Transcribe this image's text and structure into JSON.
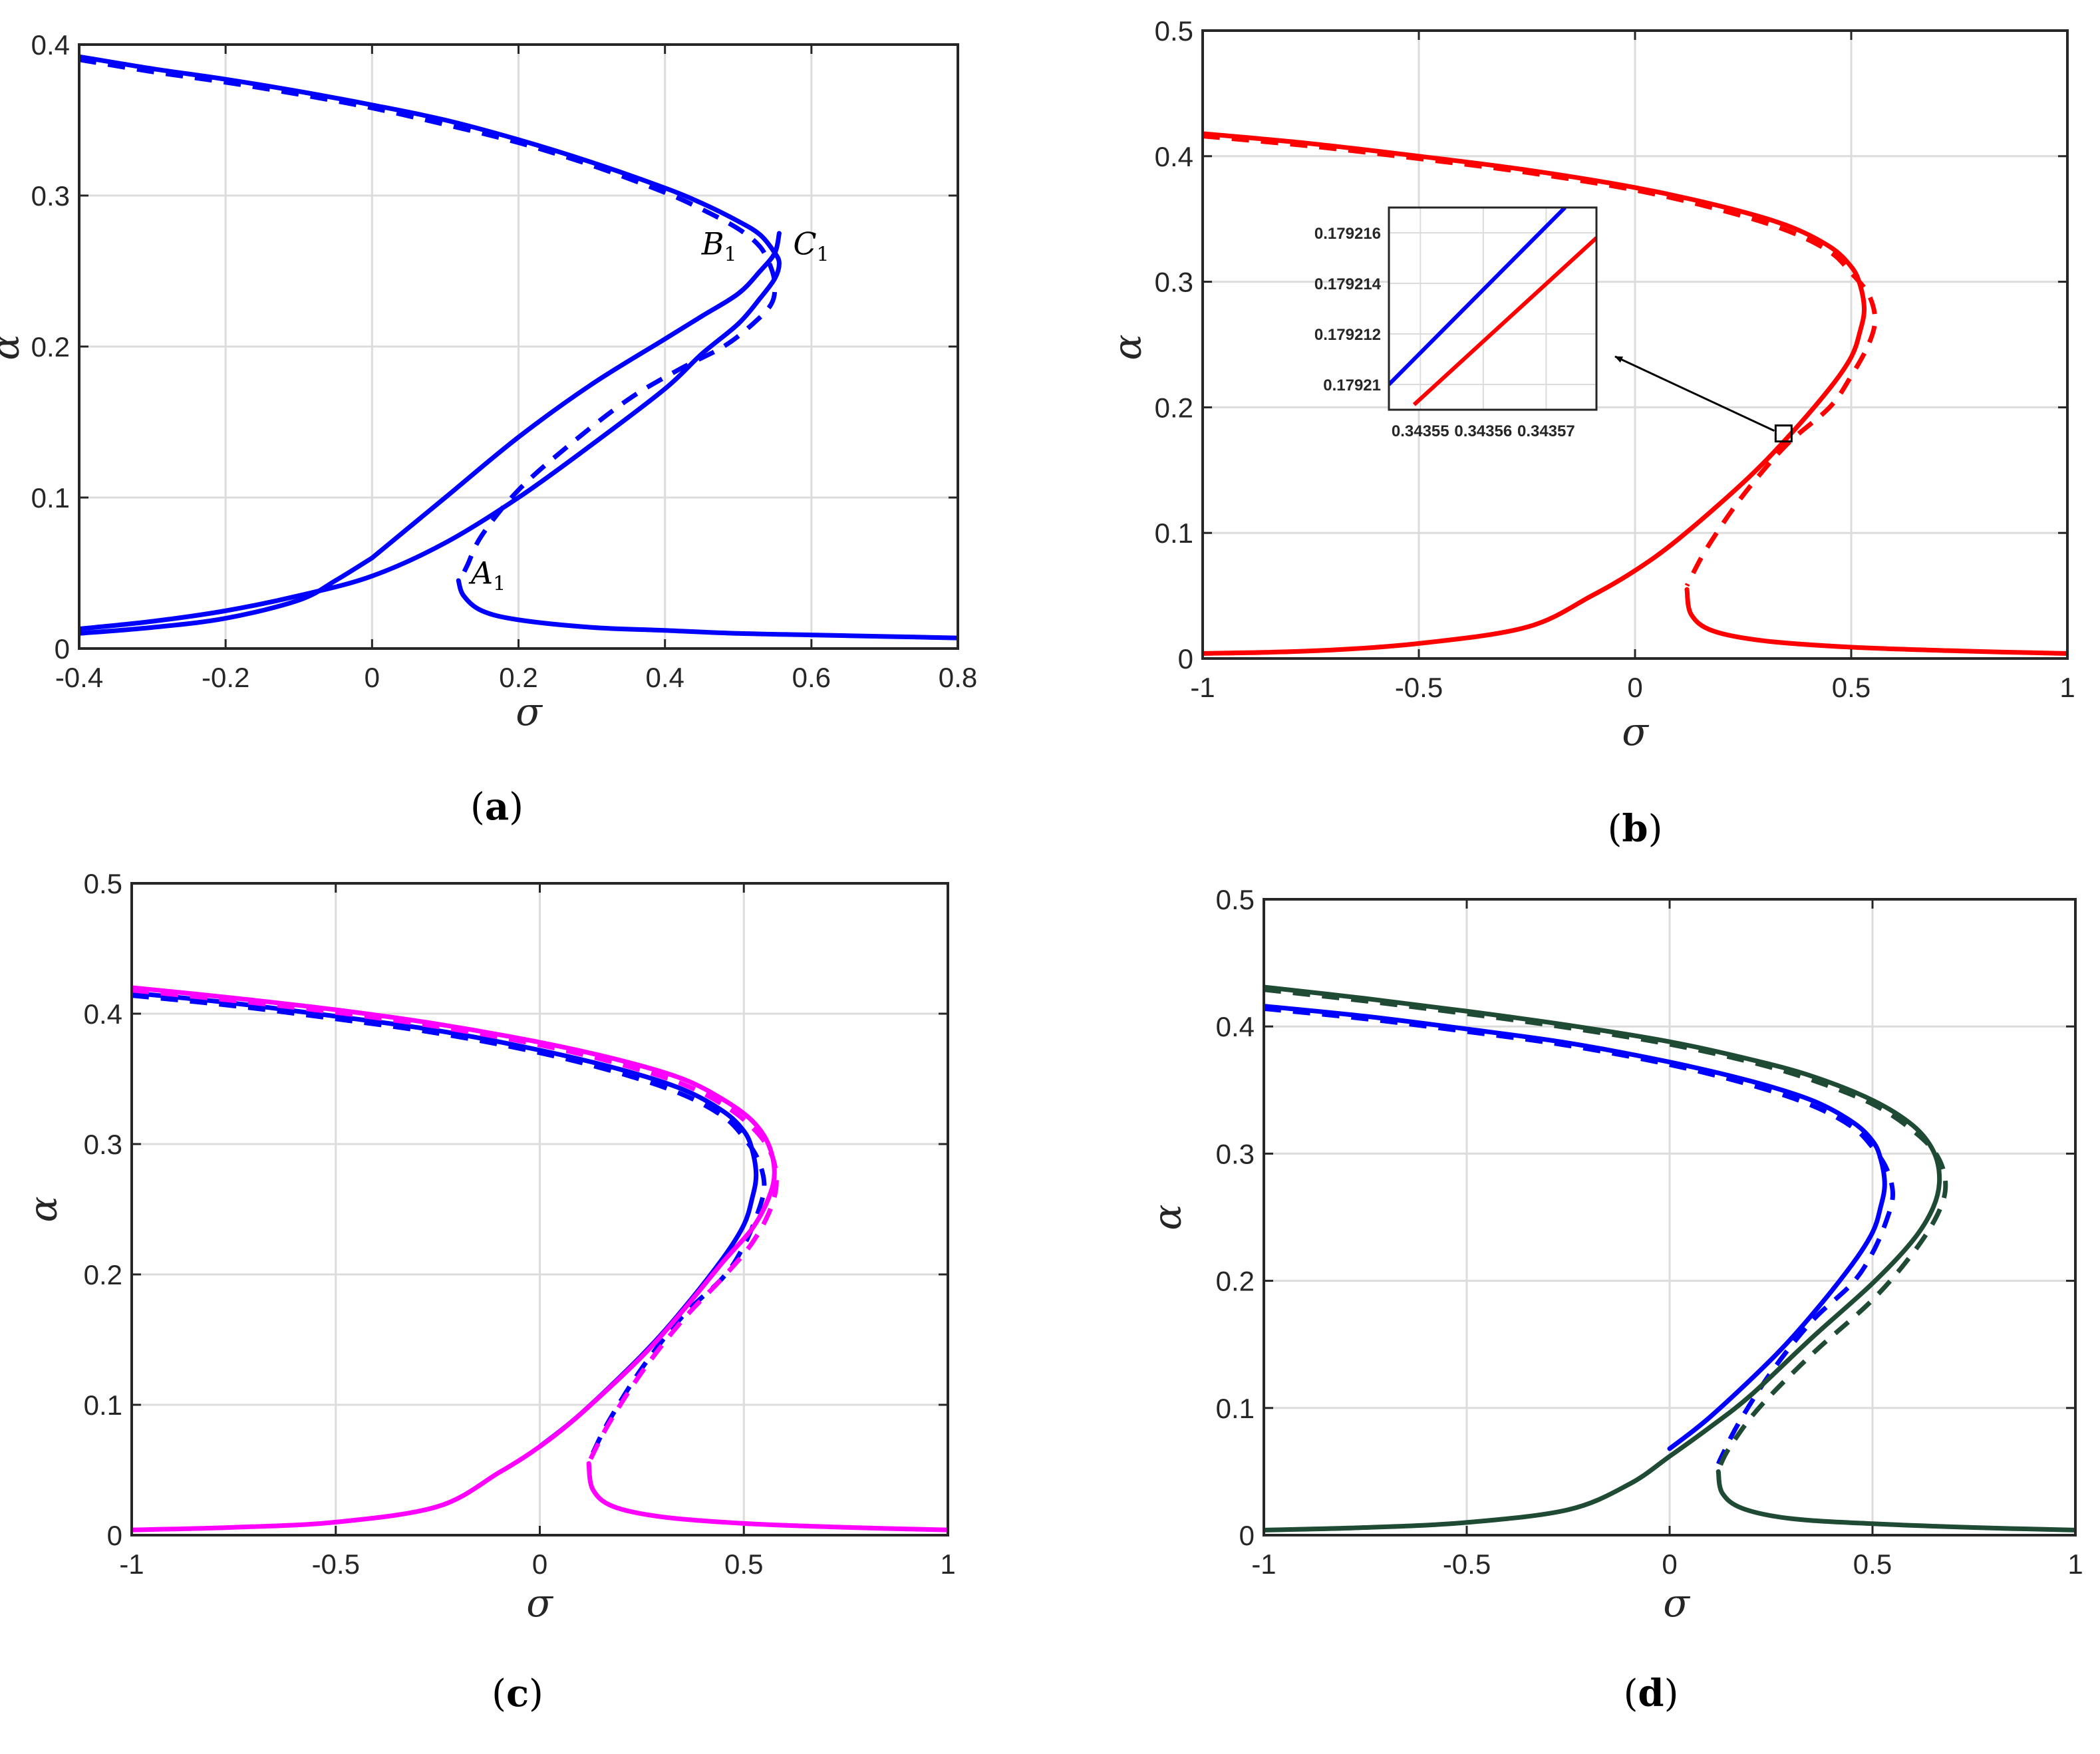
{
  "colors": {
    "blue": "#0000ff",
    "red": "#ff0000",
    "magenta": "#ff00ff",
    "darkgreen": "#1f4a33",
    "grid": "#dcdcdc",
    "axis": "#262626"
  },
  "chart_data": [
    {
      "type": "line",
      "panel_label": "(a)",
      "xlabel": "σ",
      "ylabel": "α",
      "xlim": [
        -0.4,
        0.8
      ],
      "ylim": [
        0,
        0.4
      ],
      "xticks": [
        -0.4,
        -0.2,
        0,
        0.2,
        0.4,
        0.6,
        0.8
      ],
      "xtick_labels": [
        "-0.4",
        "-0.2",
        "0",
        "0.2",
        "0.4",
        "0.6",
        "0.8"
      ],
      "yticks": [
        0,
        0.1,
        0.2,
        0.3,
        0.4
      ],
      "ytick_labels": [
        "0",
        "0.1",
        "0.2",
        "0.3",
        "0.4"
      ],
      "grid": true,
      "annotations": [
        {
          "letter": "A",
          "sub": "1",
          "x": 0.135,
          "y": 0.05
        },
        {
          "letter": "B",
          "sub": "1",
          "x": 0.45,
          "y": 0.268
        },
        {
          "letter": "C",
          "sub": "1",
          "x": 0.575,
          "y": 0.268
        }
      ],
      "series": [
        {
          "color": "blue",
          "dash": false,
          "x": [
            -0.4,
            -0.3,
            -0.2,
            -0.1,
            0,
            0.1,
            0.2,
            0.3,
            0.4,
            0.45,
            0.5,
            0.53,
            0.55,
            0.556,
            0.55,
            0.53,
            0.5,
            0.45,
            0.4,
            0.3,
            0.2,
            0.1,
            0,
            -0.1,
            -0.2,
            -0.3,
            -0.4
          ],
          "y": [
            0.392,
            0.384,
            0.377,
            0.369,
            0.36,
            0.35,
            0.337,
            0.322,
            0.305,
            0.295,
            0.283,
            0.274,
            0.262,
            0.255,
            0.245,
            0.232,
            0.215,
            0.195,
            0.172,
            0.135,
            0.1,
            0.07,
            0.048,
            0.035,
            0.025,
            0.018,
            0.013
          ]
        },
        {
          "color": "blue",
          "dash": true,
          "x": [
            -0.4,
            -0.3,
            -0.2,
            -0.1,
            0,
            0.1,
            0.2,
            0.3,
            0.4,
            0.45,
            0.5,
            0.53,
            0.545,
            0.55,
            0.545,
            0.52,
            0.48,
            0.42,
            0.35,
            0.27,
            0.2,
            0.15,
            0.13,
            0.12
          ],
          "y": [
            0.39,
            0.382,
            0.375,
            0.367,
            0.358,
            0.347,
            0.335,
            0.32,
            0.302,
            0.291,
            0.278,
            0.266,
            0.252,
            0.24,
            0.228,
            0.215,
            0.2,
            0.185,
            0.165,
            0.135,
            0.105,
            0.075,
            0.055,
            0.045
          ]
        },
        {
          "color": "blue",
          "dash": false,
          "x": [
            0.118,
            0.125,
            0.15,
            0.2,
            0.3,
            0.4,
            0.5,
            0.6,
            0.7,
            0.8
          ],
          "y": [
            0.045,
            0.035,
            0.025,
            0.019,
            0.014,
            0.012,
            0.01,
            0.009,
            0.008,
            0.007
          ]
        },
        {
          "color": "blue",
          "dash": false,
          "x": [
            -0.4,
            -0.3,
            -0.2,
            -0.1,
            -0.05,
            0
          ],
          "y": [
            0.01,
            0.014,
            0.02,
            0.032,
            0.045,
            0.06
          ]
        },
        {
          "color": "blue",
          "dash": false,
          "x": [
            0,
            0.1,
            0.2,
            0.3,
            0.4,
            0.45,
            0.5,
            0.53,
            0.55,
            0.556
          ],
          "y": [
            0.06,
            0.1,
            0.14,
            0.175,
            0.205,
            0.22,
            0.235,
            0.25,
            0.262,
            0.275
          ]
        }
      ]
    },
    {
      "type": "line",
      "panel_label": "(b)",
      "xlabel": "σ",
      "ylabel": "α",
      "xlim": [
        -1,
        1
      ],
      "ylim": [
        0,
        0.5
      ],
      "xticks": [
        -1,
        -0.5,
        0,
        0.5,
        1
      ],
      "xtick_labels": [
        "-1",
        "-0.5",
        "0",
        "0.5",
        "1"
      ],
      "yticks": [
        0,
        0.1,
        0.2,
        0.3,
        0.4,
        0.5
      ],
      "ytick_labels": [
        "0",
        "0.1",
        "0.2",
        "0.3",
        "0.4",
        "0.5"
      ],
      "grid": true,
      "inset": {
        "xlim": [
          0.343545,
          0.343578
        ],
        "ylim": [
          0.179209,
          0.179217
        ],
        "xticks": [
          0.34355,
          0.34356,
          0.34357
        ],
        "xtick_labels": [
          "0.34355",
          "0.34356",
          "0.34357"
        ],
        "yticks": [
          0.17921,
          0.179212,
          0.179214,
          0.179216
        ],
        "ytick_labels": [
          "0.17921",
          "0.179212",
          "0.179214",
          "0.179216"
        ],
        "series": [
          {
            "color": "blue",
            "x": [
              0.343545,
              0.343573
            ],
            "y": [
              0.17921,
              0.179217
            ]
          },
          {
            "color": "red",
            "x": [
              0.343549,
              0.343578
            ],
            "y": [
              0.1792092,
              0.1792158
            ]
          }
        ],
        "marker_box": {
          "x": 0.343,
          "y": 0.179
        }
      },
      "series": [
        {
          "color": "red",
          "dash": false,
          "x": [
            -1,
            -0.75,
            -0.5,
            -0.25,
            0,
            0.2,
            0.35,
            0.45,
            0.5,
            0.52,
            0.53,
            0.52,
            0.5,
            0.45,
            0.35,
            0.25,
            0.1,
            0,
            -0.1,
            -0.25,
            -0.5,
            -0.75,
            -1
          ],
          "y": [
            0.418,
            0.41,
            0.4,
            0.389,
            0.375,
            0.36,
            0.345,
            0.328,
            0.312,
            0.298,
            0.278,
            0.26,
            0.24,
            0.215,
            0.175,
            0.14,
            0.095,
            0.07,
            0.05,
            0.025,
            0.012,
            0.006,
            0.004
          ]
        },
        {
          "color": "red",
          "dash": true,
          "x": [
            -1,
            -0.75,
            -0.5,
            -0.25,
            0,
            0.2,
            0.35,
            0.45,
            0.5,
            0.54,
            0.555,
            0.54,
            0.5,
            0.45,
            0.35,
            0.25,
            0.17,
            0.13,
            0.12
          ],
          "y": [
            0.416,
            0.408,
            0.398,
            0.387,
            0.373,
            0.357,
            0.341,
            0.324,
            0.307,
            0.29,
            0.27,
            0.25,
            0.225,
            0.2,
            0.17,
            0.13,
            0.09,
            0.065,
            0.058
          ]
        },
        {
          "color": "red",
          "dash": false,
          "x": [
            0.12,
            0.13,
            0.18,
            0.3,
            0.5,
            0.75,
            1
          ],
          "y": [
            0.055,
            0.035,
            0.022,
            0.014,
            0.009,
            0.006,
            0.004
          ]
        }
      ]
    },
    {
      "type": "line",
      "panel_label": "(c)",
      "xlabel": "σ",
      "ylabel": "α",
      "xlim": [
        -1,
        1
      ],
      "ylim": [
        0,
        0.5
      ],
      "xticks": [
        -1,
        -0.5,
        0,
        0.5,
        1
      ],
      "xtick_labels": [
        "-1",
        "-0.5",
        "0",
        "0.5",
        "1"
      ],
      "yticks": [
        0,
        0.1,
        0.2,
        0.3,
        0.4,
        0.5
      ],
      "ytick_labels": [
        "0",
        "0.1",
        "0.2",
        "0.3",
        "0.4",
        "0.5"
      ],
      "grid": true,
      "series": [
        {
          "color": "blue",
          "dash": false,
          "x": [
            -1,
            -0.75,
            -0.5,
            -0.25,
            0,
            0.2,
            0.35,
            0.45,
            0.5,
            0.52,
            0.53,
            0.52,
            0.5,
            0.45,
            0.35,
            0.25,
            0.1,
            0
          ],
          "y": [
            0.416,
            0.408,
            0.398,
            0.387,
            0.372,
            0.357,
            0.342,
            0.325,
            0.31,
            0.296,
            0.276,
            0.258,
            0.238,
            0.213,
            0.173,
            0.138,
            0.093,
            0.068
          ]
        },
        {
          "color": "blue",
          "dash": true,
          "x": [
            -1,
            -0.75,
            -0.5,
            -0.25,
            0,
            0.2,
            0.35,
            0.45,
            0.5,
            0.535,
            0.55,
            0.535,
            0.5,
            0.45,
            0.35,
            0.25,
            0.17,
            0.13,
            0.12
          ],
          "y": [
            0.414,
            0.406,
            0.396,
            0.385,
            0.37,
            0.354,
            0.338,
            0.321,
            0.305,
            0.288,
            0.268,
            0.248,
            0.222,
            0.198,
            0.168,
            0.128,
            0.088,
            0.063,
            0.056
          ]
        },
        {
          "color": "magenta",
          "dash": false,
          "x": [
            -1,
            -0.75,
            -0.5,
            -0.25,
            0,
            0.2,
            0.35,
            0.45,
            0.52,
            0.56,
            0.575,
            0.56,
            0.52,
            0.45,
            0.35,
            0.25,
            0.1,
            0,
            -0.1,
            -0.25,
            -0.5,
            -0.75,
            -1
          ],
          "y": [
            0.42,
            0.412,
            0.403,
            0.392,
            0.378,
            0.364,
            0.35,
            0.334,
            0.318,
            0.3,
            0.278,
            0.258,
            0.235,
            0.21,
            0.172,
            0.137,
            0.093,
            0.068,
            0.048,
            0.022,
            0.01,
            0.006,
            0.004
          ]
        },
        {
          "color": "magenta",
          "dash": true,
          "x": [
            -1,
            -0.75,
            -0.5,
            -0.25,
            0,
            0.2,
            0.35,
            0.45,
            0.52,
            0.565,
            0.58,
            0.565,
            0.52,
            0.45,
            0.35,
            0.25,
            0.17,
            0.13,
            0.12
          ],
          "y": [
            0.418,
            0.41,
            0.401,
            0.39,
            0.376,
            0.361,
            0.346,
            0.33,
            0.313,
            0.294,
            0.272,
            0.25,
            0.224,
            0.198,
            0.165,
            0.125,
            0.086,
            0.062,
            0.055
          ]
        },
        {
          "color": "magenta",
          "dash": false,
          "x": [
            0.12,
            0.13,
            0.18,
            0.3,
            0.5,
            0.75,
            1
          ],
          "y": [
            0.055,
            0.035,
            0.022,
            0.014,
            0.009,
            0.006,
            0.004
          ]
        }
      ]
    },
    {
      "type": "line",
      "panel_label": "(d)",
      "xlabel": "σ",
      "ylabel": "α",
      "xlim": [
        -1,
        1
      ],
      "ylim": [
        0,
        0.5
      ],
      "xticks": [
        -1,
        -0.5,
        0,
        0.5,
        1
      ],
      "xtick_labels": [
        "-1",
        "-0.5",
        "0",
        "0.5",
        "1"
      ],
      "yticks": [
        0,
        0.1,
        0.2,
        0.3,
        0.4,
        0.5
      ],
      "ytick_labels": [
        "0",
        "0.1",
        "0.2",
        "0.3",
        "0.4",
        "0.5"
      ],
      "grid": true,
      "series": [
        {
          "color": "blue",
          "dash": false,
          "x": [
            -1,
            -0.75,
            -0.5,
            -0.25,
            0,
            0.2,
            0.35,
            0.45,
            0.5,
            0.52,
            0.53,
            0.52,
            0.5,
            0.45,
            0.35,
            0.25,
            0.1,
            0
          ],
          "y": [
            0.416,
            0.408,
            0.398,
            0.387,
            0.372,
            0.357,
            0.342,
            0.325,
            0.31,
            0.296,
            0.276,
            0.258,
            0.238,
            0.213,
            0.173,
            0.138,
            0.093,
            0.068
          ]
        },
        {
          "color": "blue",
          "dash": true,
          "x": [
            -1,
            -0.75,
            -0.5,
            -0.25,
            0,
            0.2,
            0.35,
            0.45,
            0.5,
            0.535,
            0.55,
            0.535,
            0.5,
            0.45,
            0.35,
            0.25,
            0.17,
            0.13,
            0.12
          ],
          "y": [
            0.414,
            0.406,
            0.396,
            0.385,
            0.37,
            0.354,
            0.338,
            0.321,
            0.305,
            0.288,
            0.268,
            0.248,
            0.222,
            0.198,
            0.168,
            0.128,
            0.088,
            0.063,
            0.056
          ]
        },
        {
          "color": "darkgreen",
          "dash": false,
          "x": [
            -1,
            -0.75,
            -0.5,
            -0.25,
            0,
            0.2,
            0.35,
            0.5,
            0.6,
            0.65,
            0.665,
            0.65,
            0.6,
            0.5,
            0.35,
            0.2,
            0.1,
            0,
            -0.1,
            -0.25,
            -0.5,
            -0.75,
            -1
          ],
          "y": [
            0.431,
            0.422,
            0.412,
            0.401,
            0.388,
            0.374,
            0.361,
            0.342,
            0.322,
            0.302,
            0.28,
            0.258,
            0.232,
            0.198,
            0.155,
            0.11,
            0.085,
            0.062,
            0.04,
            0.02,
            0.01,
            0.006,
            0.004
          ]
        },
        {
          "color": "darkgreen",
          "dash": true,
          "x": [
            -1,
            -0.75,
            -0.5,
            -0.25,
            0,
            0.2,
            0.35,
            0.5,
            0.6,
            0.66,
            0.68,
            0.66,
            0.6,
            0.5,
            0.35,
            0.22,
            0.15,
            0.125,
            0.12
          ],
          "y": [
            0.429,
            0.42,
            0.41,
            0.399,
            0.386,
            0.372,
            0.358,
            0.339,
            0.318,
            0.298,
            0.275,
            0.252,
            0.222,
            0.185,
            0.142,
            0.1,
            0.07,
            0.055,
            0.05
          ]
        },
        {
          "color": "darkgreen",
          "dash": false,
          "x": [
            0.12,
            0.13,
            0.18,
            0.3,
            0.5,
            0.75,
            1
          ],
          "y": [
            0.05,
            0.033,
            0.021,
            0.013,
            0.009,
            0.006,
            0.004
          ]
        }
      ]
    }
  ]
}
